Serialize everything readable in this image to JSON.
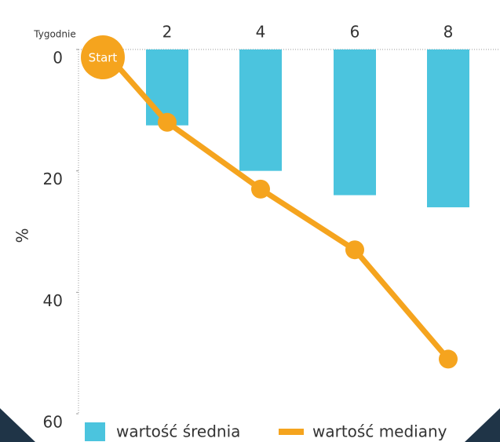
{
  "chart_data": {
    "type": "bar+line",
    "x_label": "Tygodnie",
    "y_label": "%",
    "categories": [
      "Start",
      "2",
      "4",
      "6",
      "8"
    ],
    "series": [
      {
        "name": "wartość średnia",
        "type": "bar",
        "color": "#4bc4de",
        "values": [
          null,
          12.5,
          20,
          24,
          26
        ]
      },
      {
        "name": "wartość mediany",
        "type": "line",
        "color": "#f5a41e",
        "values": [
          0,
          12,
          23,
          33,
          51
        ]
      }
    ],
    "ylim": [
      0,
      60
    ],
    "yticks": [
      0,
      20,
      40,
      60
    ],
    "y_inverted": true
  }
}
